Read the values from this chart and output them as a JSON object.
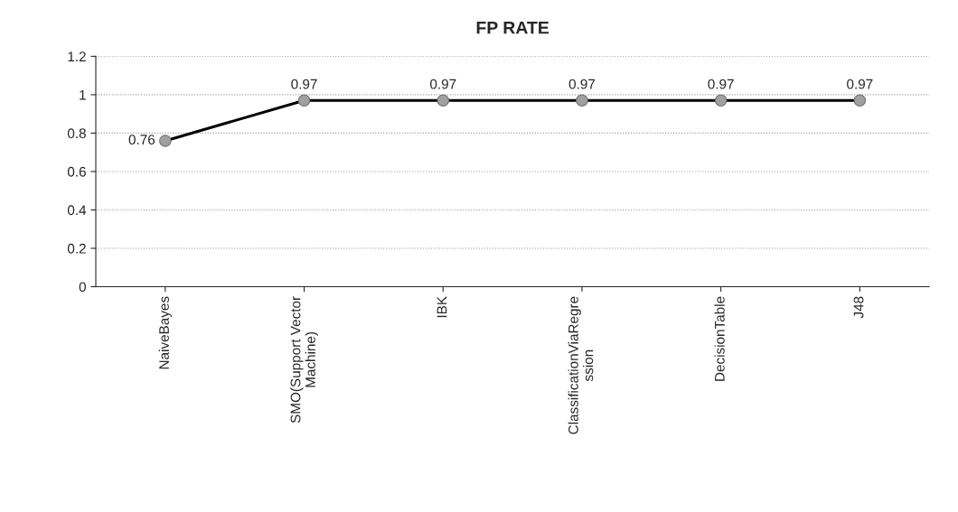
{
  "chart_data": {
    "type": "line",
    "title": "FP RATE",
    "categories": [
      "NaiveBayes",
      "SMO(Support Vector Machine)",
      "IBK",
      "ClassificationViaRegression",
      "DecisionTable",
      "J48"
    ],
    "series": [
      {
        "color": "#000000",
        "values": [
          0.76,
          0.97,
          0.97,
          0.97,
          0.97,
          0.97
        ]
      }
    ],
    "ylim": [
      0,
      1.2
    ],
    "yticks": [
      0,
      0.2,
      0.4,
      0.6,
      0.8,
      1,
      1.2
    ],
    "grid": "y",
    "marker": "circle",
    "line_style": "solid",
    "data_labels": true
  }
}
